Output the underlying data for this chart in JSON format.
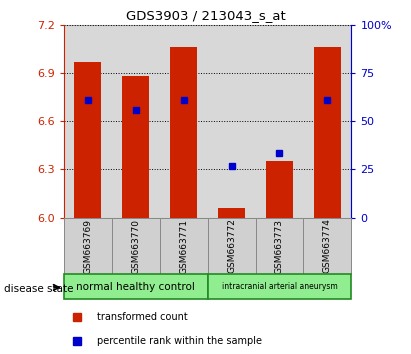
{
  "title": "GDS3903 / 213043_s_at",
  "samples": [
    "GSM663769",
    "GSM663770",
    "GSM663771",
    "GSM663772",
    "GSM663773",
    "GSM663774"
  ],
  "bar_values": [
    6.97,
    6.88,
    7.06,
    6.06,
    6.35,
    7.06
  ],
  "percentile_values": [
    6.73,
    6.67,
    6.73,
    6.32,
    6.4,
    6.73
  ],
  "bar_color": "#cc2200",
  "percentile_color": "#0000cc",
  "ymin": 6.0,
  "ymax": 7.2,
  "yticks": [
    6.0,
    6.3,
    6.6,
    6.9,
    7.2
  ],
  "right_yticks": [
    0,
    25,
    50,
    75,
    100
  ],
  "group_labels": [
    "normal healthy control",
    "intracranial arterial aneurysm"
  ],
  "group_colors": [
    "#90ee90",
    "#90ee90"
  ],
  "group_border_color": "#228B22",
  "left_axis_color": "#cc2200",
  "right_axis_color": "#0000cc",
  "bar_width": 0.55,
  "plot_bg_color": "#d8d8d8",
  "sample_box_color": "#d0d0d0",
  "disease_state_label": "disease state",
  "legend_red_label": "transformed count",
  "legend_blue_label": "percentile rank within the sample"
}
